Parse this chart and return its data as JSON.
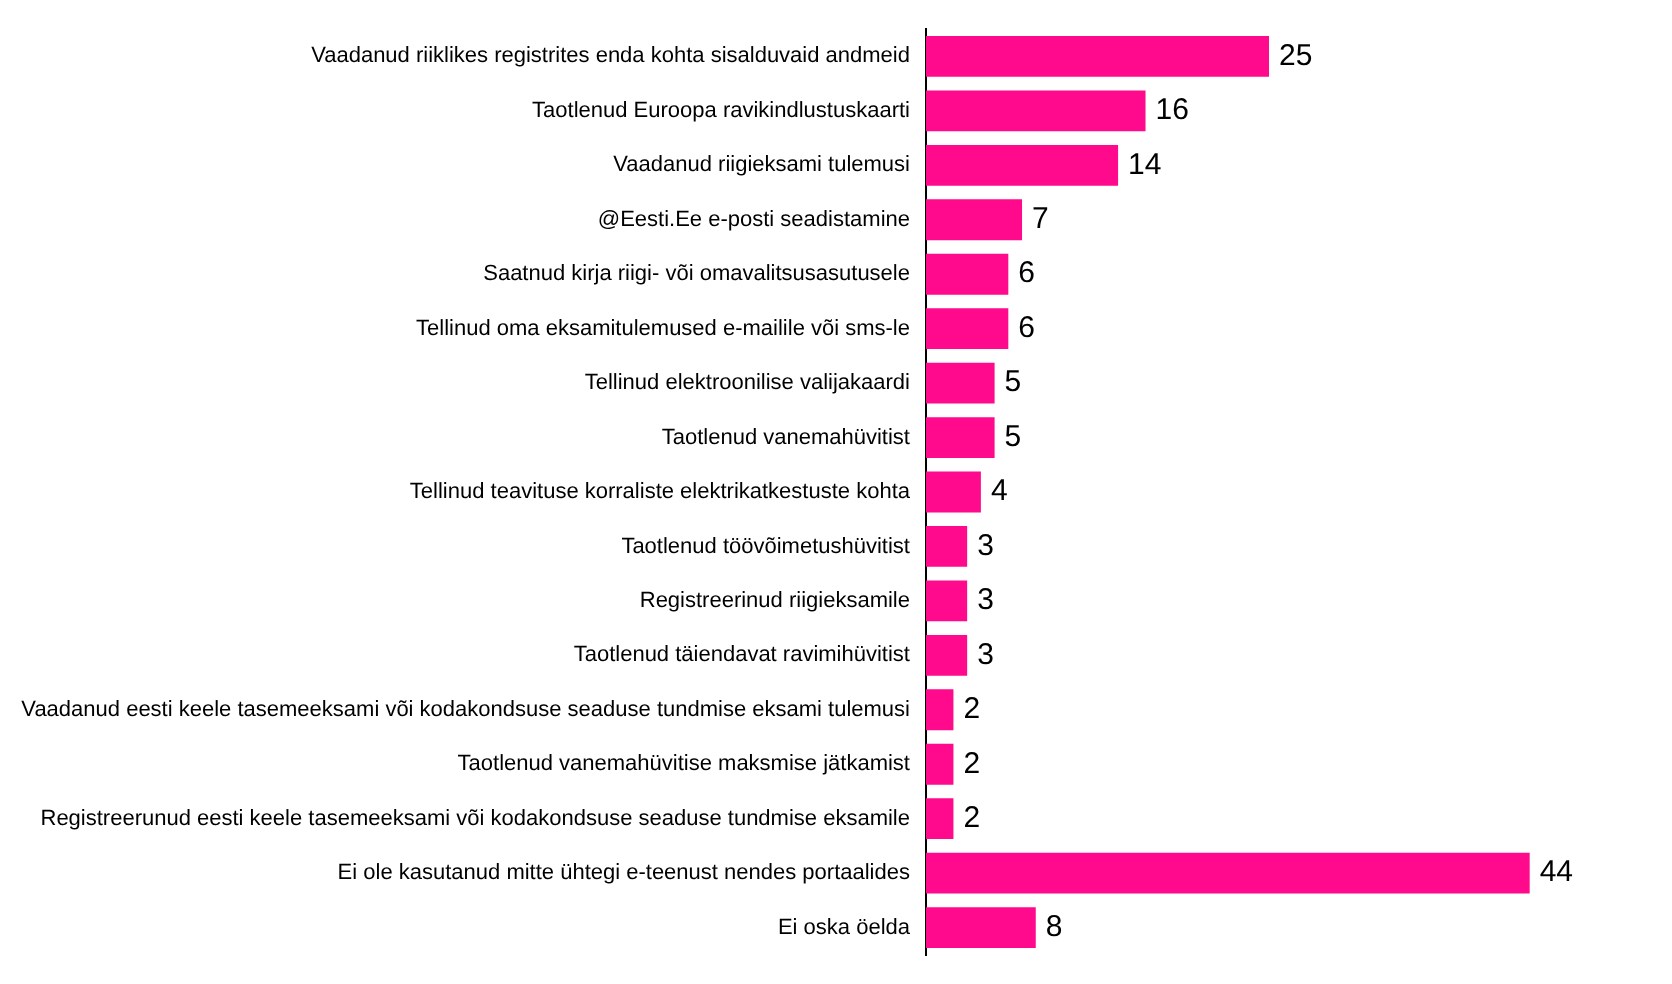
{
  "chart_data": {
    "type": "bar",
    "orientation": "horizontal",
    "categories": [
      "Vaadanud riiklikes registrites enda kohta sisalduvaid andmeid",
      "Taotlenud Euroopa ravikindlustuskaarti",
      "Vaadanud riigieksami tulemusi",
      "@Eesti.Ee e-posti seadistamine",
      "Saatnud kirja riigi- või omavalitsusasutusele",
      "Tellinud oma eksamitulemused e-mailile või sms-le",
      "Tellinud elektroonilise valijakaardi",
      "Taotlenud vanemahüvitist",
      "Tellinud teavituse korraliste elektrikatkestuste kohta",
      "Taotlenud töövõimetushüvitist",
      "Registreerinud riigieksamile",
      "Taotlenud täiendavat ravimihüvitist",
      "Vaadanud eesti keele tasemeeksami või kodakondsuse seaduse tundmise eksami tulemusi",
      "Taotlenud vanemahüvitise maksmise jätkamist",
      "Registreerunud eesti keele tasemeeksami või kodakondsuse seaduse tundmise eksamile",
      "Ei ole kasutanud mitte ühtegi e-teenust nendes portaalides",
      "Ei oska öelda"
    ],
    "values": [
      25,
      16,
      14,
      7,
      6,
      6,
      5,
      5,
      4,
      3,
      3,
      3,
      2,
      2,
      2,
      44,
      8
    ],
    "color": "#ff0a8c",
    "tick_labels": "y",
    "grid": false,
    "data_labels": true
  }
}
